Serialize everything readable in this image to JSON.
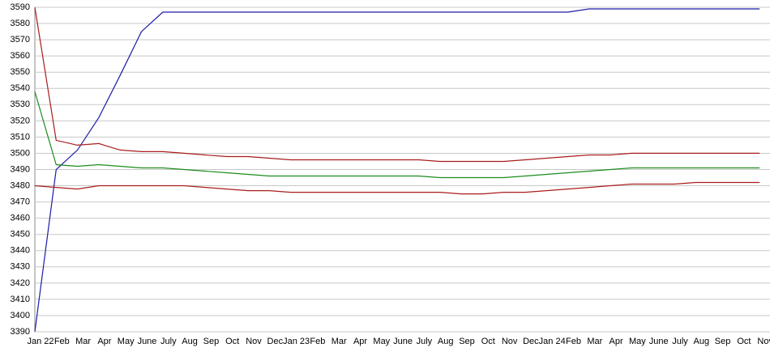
{
  "chart_data": {
    "type": "line",
    "categories": [
      "Jan 22",
      "Feb",
      "Mar",
      "Apr",
      "May",
      "June",
      "July",
      "Aug",
      "Sep",
      "Oct",
      "Nov",
      "Dec",
      "Jan 23",
      "Feb",
      "Mar",
      "Apr",
      "May",
      "June",
      "July",
      "Aug",
      "Sep",
      "Oct",
      "Nov",
      "Dec",
      "Jan 24",
      "Feb",
      "Mar",
      "Apr",
      "May",
      "June",
      "July",
      "Aug",
      "Sep",
      "Oct",
      "Nov"
    ],
    "series": [
      {
        "color": "#1c1ca8",
        "values": [
          3390,
          3490,
          3502,
          3522,
          3548,
          3575,
          3587,
          3587,
          3587,
          3587,
          3587,
          3587,
          3587,
          3587,
          3587,
          3587,
          3587,
          3587,
          3587,
          3587,
          3587,
          3587,
          3587,
          3587,
          3587,
          3587,
          3589,
          3589,
          3589,
          3589,
          3589,
          3589,
          3589,
          3589,
          3589
        ]
      },
      {
        "color": "#aa1c1c",
        "values": [
          3590,
          3508,
          3505,
          3506,
          3502,
          3501,
          3501,
          3500,
          3499,
          3498,
          3498,
          3497,
          3496,
          3496,
          3496,
          3496,
          3496,
          3496,
          3496,
          3495,
          3495,
          3495,
          3495,
          3496,
          3497,
          3498,
          3499,
          3499,
          3500,
          3500,
          3500,
          3500,
          3500,
          3500,
          3500
        ]
      },
      {
        "color": "#1c8c1c",
        "values": [
          3538,
          3493,
          3492,
          3493,
          3492,
          3491,
          3491,
          3490,
          3489,
          3488,
          3487,
          3486,
          3486,
          3486,
          3486,
          3486,
          3486,
          3486,
          3486,
          3485,
          3485,
          3485,
          3485,
          3486,
          3487,
          3488,
          3489,
          3490,
          3491,
          3491,
          3491,
          3491,
          3491,
          3491,
          3491
        ]
      },
      {
        "color": "#aa1c1c",
        "values": [
          3480,
          3479,
          3478,
          3480,
          3480,
          3480,
          3480,
          3480,
          3479,
          3478,
          3477,
          3477,
          3476,
          3476,
          3476,
          3476,
          3476,
          3476,
          3476,
          3476,
          3475,
          3475,
          3476,
          3476,
          3477,
          3478,
          3479,
          3480,
          3481,
          3481,
          3481,
          3482,
          3482,
          3482,
          3482
        ]
      }
    ],
    "ylim": [
      3390,
      3590
    ],
    "yticks": [
      3390,
      3400,
      3410,
      3420,
      3430,
      3440,
      3450,
      3460,
      3470,
      3480,
      3490,
      3500,
      3510,
      3520,
      3530,
      3540,
      3550,
      3560,
      3570,
      3580,
      3590
    ],
    "grid": true
  }
}
